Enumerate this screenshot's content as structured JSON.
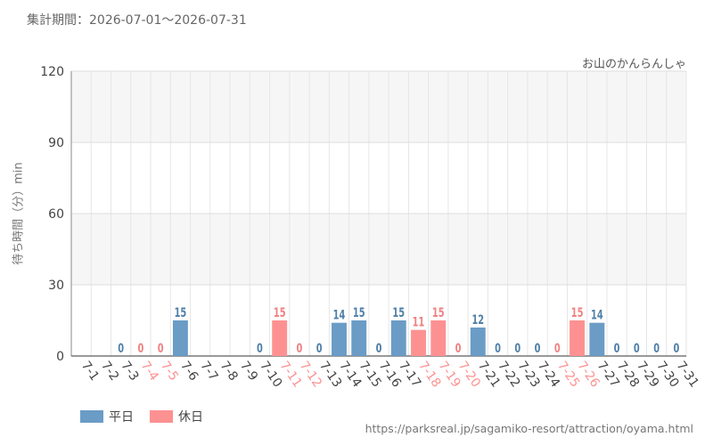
{
  "header": {
    "period_label": "集計期間：",
    "period_value": "2026-07-01～2026-07-31",
    "attraction": "お山のかんらんしゃ"
  },
  "footer": {
    "url": "https://parksreal.jp/sagamiko-resort/attraction/oyama.html"
  },
  "colors": {
    "weekday": "#6a9cc6",
    "holiday": "#fd9191",
    "weekday_text": "#4f7fa8",
    "holiday_text": "#f08080",
    "axis_text": "#444444"
  },
  "chart_data": {
    "type": "bar",
    "ylabel": "待ち時間（分）min",
    "ylim": [
      0,
      120
    ],
    "yticks": [
      0,
      30,
      60,
      90,
      120
    ],
    "grid": true,
    "legend_position": "bottom-left",
    "series": [
      {
        "key": "weekday",
        "name": "平日"
      },
      {
        "key": "holiday",
        "name": "休日"
      }
    ],
    "categories": [
      "7-1",
      "7-2",
      "7-3",
      "7-4",
      "7-5",
      "7-6",
      "7-7",
      "7-8",
      "7-9",
      "7-10",
      "7-11",
      "7-12",
      "7-13",
      "7-14",
      "7-15",
      "7-16",
      "7-17",
      "7-18",
      "7-19",
      "7-20",
      "7-21",
      "7-22",
      "7-23",
      "7-24",
      "7-25",
      "7-26",
      "7-27",
      "7-28",
      "7-29",
      "7-30",
      "7-31"
    ],
    "values": [
      null,
      null,
      0,
      0,
      0,
      15,
      null,
      null,
      null,
      0,
      15,
      0,
      0,
      14,
      15,
      0,
      15,
      11,
      15,
      0,
      12,
      0,
      0,
      0,
      0,
      15,
      14,
      0,
      0,
      0,
      0
    ],
    "day_type": [
      "weekday",
      "weekday",
      "weekday",
      "holiday",
      "holiday",
      "weekday",
      "weekday",
      "weekday",
      "weekday",
      "weekday",
      "holiday",
      "holiday",
      "weekday",
      "weekday",
      "weekday",
      "weekday",
      "weekday",
      "holiday",
      "holiday",
      "holiday",
      "weekday",
      "weekday",
      "weekday",
      "weekday",
      "holiday",
      "holiday",
      "weekday",
      "weekday",
      "weekday",
      "weekday",
      "weekday"
    ]
  }
}
